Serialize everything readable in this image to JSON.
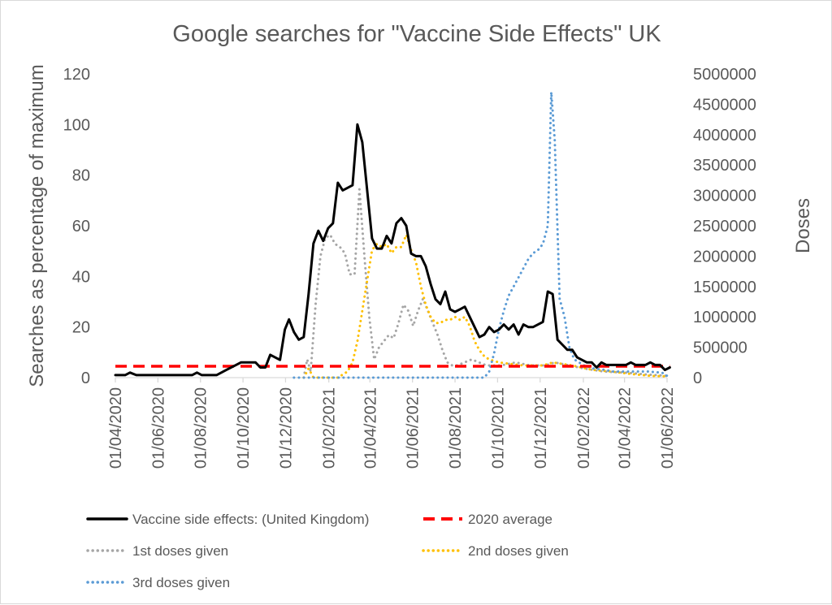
{
  "chart_data": {
    "type": "line",
    "title": "Google searches for \"Vaccine Side Effects\" UK",
    "ylabel": "Searches as percentage of maximum",
    "y2label": "Doses",
    "ylim": [
      0,
      120
    ],
    "y2lim": [
      0,
      5000000
    ],
    "yticks": [
      "0",
      "20",
      "40",
      "60",
      "80",
      "100",
      "120"
    ],
    "y2ticks": [
      "0",
      "500000",
      "1000000",
      "1500000",
      "2000000",
      "2500000",
      "3000000",
      "3500000",
      "4000000",
      "4500000",
      "5000000"
    ],
    "x_range": [
      "2020-04-01",
      "2022-06-01"
    ],
    "xticks": [
      "01/04/2020",
      "01/06/2020",
      "01/08/2020",
      "01/10/2020",
      "01/12/2020",
      "01/02/2021",
      "01/04/2021",
      "01/06/2021",
      "01/08/2021",
      "01/10/2021",
      "01/12/2021",
      "01/02/2022",
      "01/04/2022",
      "01/06/2022"
    ],
    "grid": false,
    "legend_position": "bottom",
    "series": [
      {
        "name": "Vaccine side effects: (United Kingdom)",
        "axis": "left",
        "color": "#000000",
        "style": "solid",
        "points": [
          [
            "2020-04-01",
            1
          ],
          [
            "2020-04-15",
            1
          ],
          [
            "2020-04-22",
            2
          ],
          [
            "2020-05-01",
            1
          ],
          [
            "2020-06-01",
            1
          ],
          [
            "2020-07-01",
            1
          ],
          [
            "2020-07-20",
            1
          ],
          [
            "2020-07-27",
            2
          ],
          [
            "2020-08-03",
            1
          ],
          [
            "2020-08-24",
            1
          ],
          [
            "2020-09-07",
            3
          ],
          [
            "2020-09-21",
            5
          ],
          [
            "2020-09-28",
            6
          ],
          [
            "2020-10-19",
            6
          ],
          [
            "2020-10-26",
            4
          ],
          [
            "2020-11-02",
            4
          ],
          [
            "2020-11-09",
            9
          ],
          [
            "2020-11-16",
            8
          ],
          [
            "2020-11-23",
            7
          ],
          [
            "2020-11-30",
            19
          ],
          [
            "2020-12-06",
            23
          ],
          [
            "2020-12-13",
            18
          ],
          [
            "2020-12-20",
            15
          ],
          [
            "2020-12-27",
            16
          ],
          [
            "2021-01-03",
            33
          ],
          [
            "2021-01-10",
            53
          ],
          [
            "2021-01-17",
            58
          ],
          [
            "2021-01-24",
            54
          ],
          [
            "2021-01-31",
            59
          ],
          [
            "2021-02-07",
            61
          ],
          [
            "2021-02-14",
            77
          ],
          [
            "2021-02-21",
            74
          ],
          [
            "2021-02-28",
            75
          ],
          [
            "2021-03-07",
            76
          ],
          [
            "2021-03-14",
            100
          ],
          [
            "2021-03-21",
            93
          ],
          [
            "2021-03-28",
            74
          ],
          [
            "2021-04-04",
            55
          ],
          [
            "2021-04-11",
            51
          ],
          [
            "2021-04-18",
            51
          ],
          [
            "2021-04-25",
            56
          ],
          [
            "2021-05-02",
            53
          ],
          [
            "2021-05-09",
            61
          ],
          [
            "2021-05-16",
            63
          ],
          [
            "2021-05-23",
            60
          ],
          [
            "2021-05-30",
            49
          ],
          [
            "2021-06-06",
            48
          ],
          [
            "2021-06-13",
            48
          ],
          [
            "2021-06-20",
            44
          ],
          [
            "2021-06-27",
            37
          ],
          [
            "2021-07-04",
            31
          ],
          [
            "2021-07-11",
            29
          ],
          [
            "2021-07-18",
            34
          ],
          [
            "2021-07-25",
            27
          ],
          [
            "2021-08-01",
            26
          ],
          [
            "2021-08-08",
            27
          ],
          [
            "2021-08-15",
            28
          ],
          [
            "2021-08-22",
            24
          ],
          [
            "2021-08-29",
            20
          ],
          [
            "2021-09-05",
            16
          ],
          [
            "2021-09-12",
            17
          ],
          [
            "2021-09-19",
            20
          ],
          [
            "2021-09-26",
            18
          ],
          [
            "2021-10-03",
            19
          ],
          [
            "2021-10-10",
            21
          ],
          [
            "2021-10-17",
            19
          ],
          [
            "2021-10-24",
            21
          ],
          [
            "2021-10-31",
            17
          ],
          [
            "2021-11-07",
            21
          ],
          [
            "2021-11-14",
            20
          ],
          [
            "2021-11-21",
            20
          ],
          [
            "2021-11-28",
            21
          ],
          [
            "2021-12-05",
            22
          ],
          [
            "2021-12-12",
            34
          ],
          [
            "2021-12-19",
            33
          ],
          [
            "2021-12-26",
            15
          ],
          [
            "2022-01-02",
            13
          ],
          [
            "2022-01-09",
            11
          ],
          [
            "2022-01-16",
            11
          ],
          [
            "2022-01-23",
            8
          ],
          [
            "2022-01-30",
            7
          ],
          [
            "2022-02-06",
            6
          ],
          [
            "2022-02-13",
            6
          ],
          [
            "2022-02-20",
            4
          ],
          [
            "2022-02-27",
            6
          ],
          [
            "2022-03-06",
            5
          ],
          [
            "2022-04-03",
            5
          ],
          [
            "2022-04-10",
            6
          ],
          [
            "2022-04-17",
            5
          ],
          [
            "2022-05-01",
            5
          ],
          [
            "2022-05-08",
            6
          ],
          [
            "2022-05-15",
            5
          ],
          [
            "2022-05-22",
            5
          ],
          [
            "2022-05-29",
            3
          ],
          [
            "2022-06-05",
            4
          ]
        ]
      },
      {
        "name": "2020 average",
        "axis": "left",
        "color": "#ff0000",
        "style": "dashed",
        "points": [
          [
            "2020-04-01",
            4.5
          ],
          [
            "2022-06-05",
            4.5
          ]
        ]
      },
      {
        "name": "1st doses given",
        "axis": "right",
        "color": "#a6a6a6",
        "style": "dotted",
        "points": [
          [
            "2020-12-27",
            0
          ],
          [
            "2021-01-01",
            300000
          ],
          [
            "2021-01-06",
            100000
          ],
          [
            "2021-01-13",
            1200000
          ],
          [
            "2021-01-20",
            2000000
          ],
          [
            "2021-01-27",
            2300000
          ],
          [
            "2021-02-03",
            2350000
          ],
          [
            "2021-02-10",
            2200000
          ],
          [
            "2021-02-17",
            2150000
          ],
          [
            "2021-02-24",
            2050000
          ],
          [
            "2021-03-03",
            1700000
          ],
          [
            "2021-03-10",
            1700000
          ],
          [
            "2021-03-17",
            3100000
          ],
          [
            "2021-03-24",
            2000000
          ],
          [
            "2021-03-31",
            1000000
          ],
          [
            "2021-04-07",
            300000
          ],
          [
            "2021-04-14",
            500000
          ],
          [
            "2021-04-21",
            600000
          ],
          [
            "2021-04-28",
            700000
          ],
          [
            "2021-05-05",
            650000
          ],
          [
            "2021-05-12",
            900000
          ],
          [
            "2021-05-19",
            1200000
          ],
          [
            "2021-05-26",
            1100000
          ],
          [
            "2021-06-02",
            850000
          ],
          [
            "2021-06-09",
            1100000
          ],
          [
            "2021-06-16",
            1300000
          ],
          [
            "2021-06-23",
            1100000
          ],
          [
            "2021-06-30",
            900000
          ],
          [
            "2021-07-07",
            700000
          ],
          [
            "2021-07-14",
            450000
          ],
          [
            "2021-07-21",
            250000
          ],
          [
            "2021-07-28",
            200000
          ],
          [
            "2021-08-04",
            200000
          ],
          [
            "2021-08-25",
            300000
          ],
          [
            "2021-09-15",
            200000
          ],
          [
            "2021-10-06",
            200000
          ],
          [
            "2021-10-27",
            250000
          ],
          [
            "2021-11-17",
            200000
          ],
          [
            "2021-12-08",
            200000
          ],
          [
            "2021-12-22",
            250000
          ],
          [
            "2022-01-12",
            200000
          ],
          [
            "2022-02-02",
            150000
          ],
          [
            "2022-03-02",
            100000
          ],
          [
            "2022-04-06",
            80000
          ],
          [
            "2022-05-04",
            50000
          ],
          [
            "2022-06-01",
            30000
          ]
        ]
      },
      {
        "name": "2nd doses given",
        "axis": "right",
        "color": "#ffc000",
        "style": "dotted",
        "points": [
          [
            "2020-12-27",
            0
          ],
          [
            "2021-01-03",
            150000
          ],
          [
            "2021-01-10",
            0
          ],
          [
            "2021-02-14",
            0
          ],
          [
            "2021-02-28",
            100000
          ],
          [
            "2021-03-07",
            250000
          ],
          [
            "2021-03-14",
            600000
          ],
          [
            "2021-03-21",
            1100000
          ],
          [
            "2021-03-28",
            1600000
          ],
          [
            "2021-04-04",
            2100000
          ],
          [
            "2021-04-11",
            2200000
          ],
          [
            "2021-04-18",
            2150000
          ],
          [
            "2021-04-25",
            2200000
          ],
          [
            "2021-05-02",
            2050000
          ],
          [
            "2021-05-09",
            2150000
          ],
          [
            "2021-05-16",
            2150000
          ],
          [
            "2021-05-23",
            2350000
          ],
          [
            "2021-05-30",
            2100000
          ],
          [
            "2021-06-06",
            1900000
          ],
          [
            "2021-06-13",
            1500000
          ],
          [
            "2021-06-20",
            1200000
          ],
          [
            "2021-06-27",
            1000000
          ],
          [
            "2021-07-04",
            900000
          ],
          [
            "2021-07-11",
            900000
          ],
          [
            "2021-07-18",
            950000
          ],
          [
            "2021-07-25",
            950000
          ],
          [
            "2021-08-01",
            1000000
          ],
          [
            "2021-08-08",
            950000
          ],
          [
            "2021-08-15",
            1000000
          ],
          [
            "2021-08-22",
            850000
          ],
          [
            "2021-08-29",
            600000
          ],
          [
            "2021-09-05",
            450000
          ],
          [
            "2021-09-12",
            350000
          ],
          [
            "2021-09-19",
            300000
          ],
          [
            "2021-10-03",
            250000
          ],
          [
            "2021-11-07",
            200000
          ],
          [
            "2021-12-05",
            200000
          ],
          [
            "2021-12-19",
            250000
          ],
          [
            "2022-01-16",
            200000
          ],
          [
            "2022-02-13",
            130000
          ],
          [
            "2022-03-13",
            100000
          ],
          [
            "2022-04-10",
            60000
          ],
          [
            "2022-05-08",
            30000
          ],
          [
            "2022-06-01",
            20000
          ]
        ]
      },
      {
        "name": "3rd doses given",
        "axis": "right",
        "color": "#5b9bd5",
        "style": "dotted",
        "points": [
          [
            "2020-12-13",
            0
          ],
          [
            "2021-09-12",
            0
          ],
          [
            "2021-09-19",
            100000
          ],
          [
            "2021-09-26",
            400000
          ],
          [
            "2021-10-03",
            800000
          ],
          [
            "2021-10-10",
            1100000
          ],
          [
            "2021-10-17",
            1350000
          ],
          [
            "2021-10-24",
            1500000
          ],
          [
            "2021-10-31",
            1650000
          ],
          [
            "2021-11-07",
            1800000
          ],
          [
            "2021-11-14",
            1950000
          ],
          [
            "2021-11-21",
            2050000
          ],
          [
            "2021-11-28",
            2100000
          ],
          [
            "2021-12-05",
            2200000
          ],
          [
            "2021-12-12",
            2500000
          ],
          [
            "2021-12-17",
            4700000
          ],
          [
            "2021-12-22",
            3900000
          ],
          [
            "2021-12-29",
            1300000
          ],
          [
            "2022-01-05",
            1000000
          ],
          [
            "2022-01-12",
            500000
          ],
          [
            "2022-01-19",
            300000
          ],
          [
            "2022-01-26",
            250000
          ],
          [
            "2022-02-02",
            200000
          ],
          [
            "2022-02-16",
            150000
          ],
          [
            "2022-03-02",
            130000
          ],
          [
            "2022-03-16",
            100000
          ],
          [
            "2022-04-06",
            100000
          ],
          [
            "2022-05-04",
            100000
          ],
          [
            "2022-05-25",
            80000
          ],
          [
            "2022-06-01",
            30000
          ]
        ]
      }
    ]
  }
}
